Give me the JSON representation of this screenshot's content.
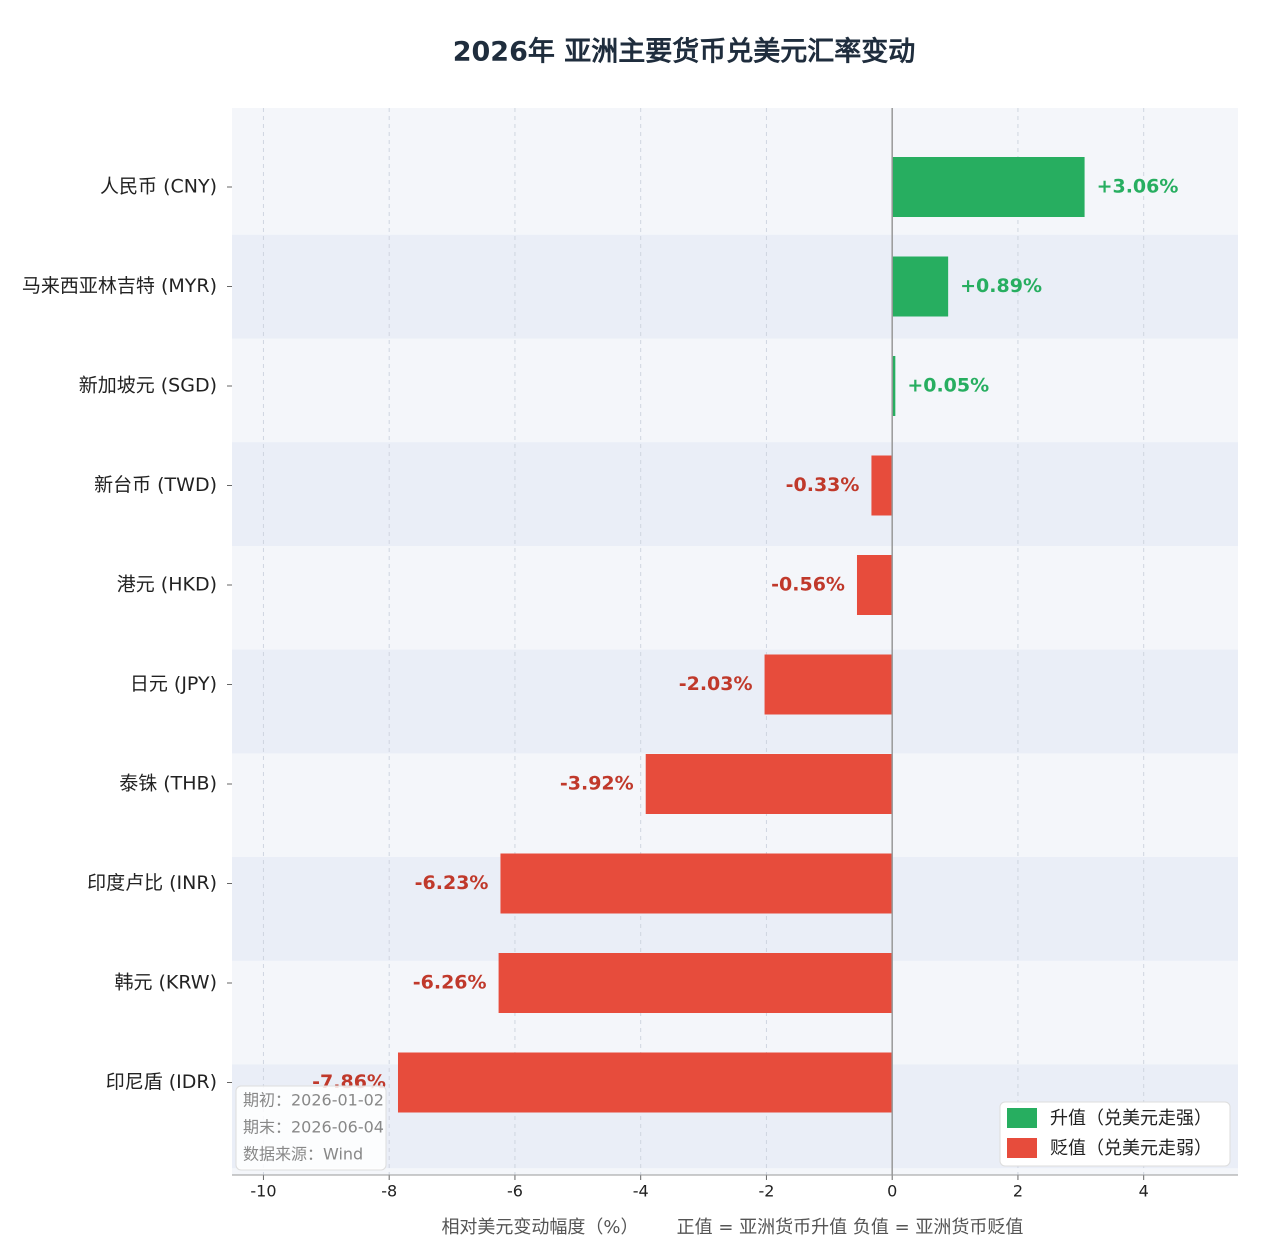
{
  "chart_data": {
    "type": "bar",
    "orientation": "horizontal",
    "title": "2026年 亚洲主要货币兑美元汇率变动",
    "categories": [
      "人民币 (CNY)",
      "马来西亚林吉特 (MYR)",
      "新加坡元 (SGD)",
      "新台币 (TWD)",
      "港元 (HKD)",
      "日元 (JPY)",
      "泰铢 (THB)",
      "印度卢比 (INR)",
      "韩元 (KRW)",
      "印尼盾 (IDR)"
    ],
    "values": [
      3.06,
      0.89,
      0.05,
      -0.33,
      -0.56,
      -2.03,
      -3.92,
      -6.23,
      -6.26,
      -7.86
    ],
    "value_labels": [
      "+3.06%",
      "+0.89%",
      "+0.05%",
      "-0.33%",
      "-0.56%",
      "-2.03%",
      "-3.92%",
      "-6.23%",
      "-6.26%",
      "-7.86%"
    ],
    "xlim": [
      -10.5,
      5.5
    ],
    "xticks": [
      -10,
      -8,
      -6,
      -4,
      -2,
      0,
      2,
      4
    ],
    "x_label": "相对美元变动幅度（%）",
    "x_note": "正值 = 亚洲货币升值   负值 = 亚洲货币贬值",
    "grid": true,
    "legend_position": "lower right",
    "legend": [
      {
        "name": "升值（兑美元走强）",
        "color": "#27ae60",
        "label_color": "#27ae60"
      },
      {
        "name": "贬值（兑美元走弱）",
        "color": "#e74c3c",
        "label_color": "#c0392b"
      }
    ],
    "annotations": [
      "期初：2026-01-02",
      "期末：2026-06-04",
      "数据来源：Wind"
    ]
  }
}
